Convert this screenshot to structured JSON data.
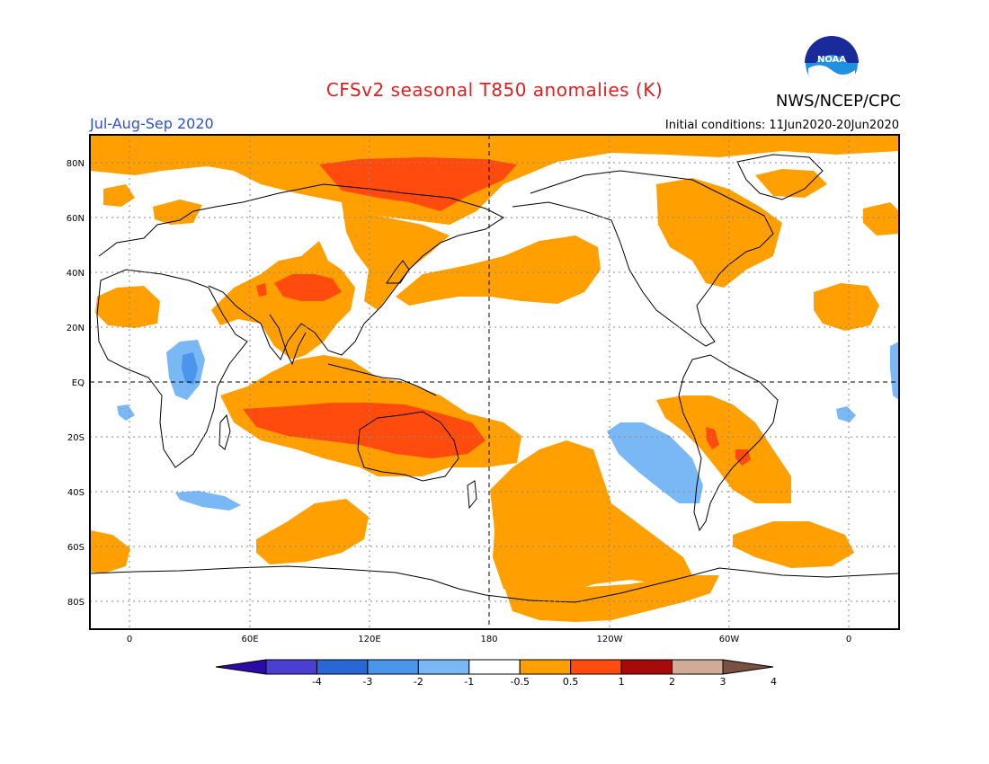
{
  "header": {
    "title": "CFSv2 seasonal T850 anomalies (K)",
    "season": "Jul-Aug-Sep 2020",
    "organization": "NWS/NCEP/CPC",
    "initial_conditions": "Initial conditions: 11Jun2020-20Jun2020",
    "logo_text": "NOAA"
  },
  "map": {
    "lat_labels": [
      "80N",
      "60N",
      "40N",
      "20N",
      "EQ",
      "20S",
      "40S",
      "60S",
      "80S"
    ],
    "lon_labels": [
      "0",
      "60E",
      "120E",
      "180",
      "120W",
      "60W",
      "0"
    ],
    "lon_range": [
      -20,
      385
    ],
    "lat_range": [
      -90,
      90
    ]
  },
  "legend": {
    "tick_labels": [
      "-4",
      "-3",
      "-2",
      "-1",
      "-0.5",
      "0.5",
      "1",
      "2",
      "3",
      "4"
    ],
    "colors": [
      "#2c0aa8",
      "#4a3fd0",
      "#2768d6",
      "#4a96ec",
      "#79b8f5",
      "#ffffff",
      "#ffa000",
      "#ff4c0e",
      "#a70a0a",
      "#d1aa98",
      "#7a5040"
    ]
  },
  "colors": {
    "warm1": "#ffa000",
    "warm2": "#ff4c0e",
    "cool1": "#79b8f5",
    "cool2": "#4a96ec",
    "title": "#e02020",
    "season": "#2a50e0"
  }
}
